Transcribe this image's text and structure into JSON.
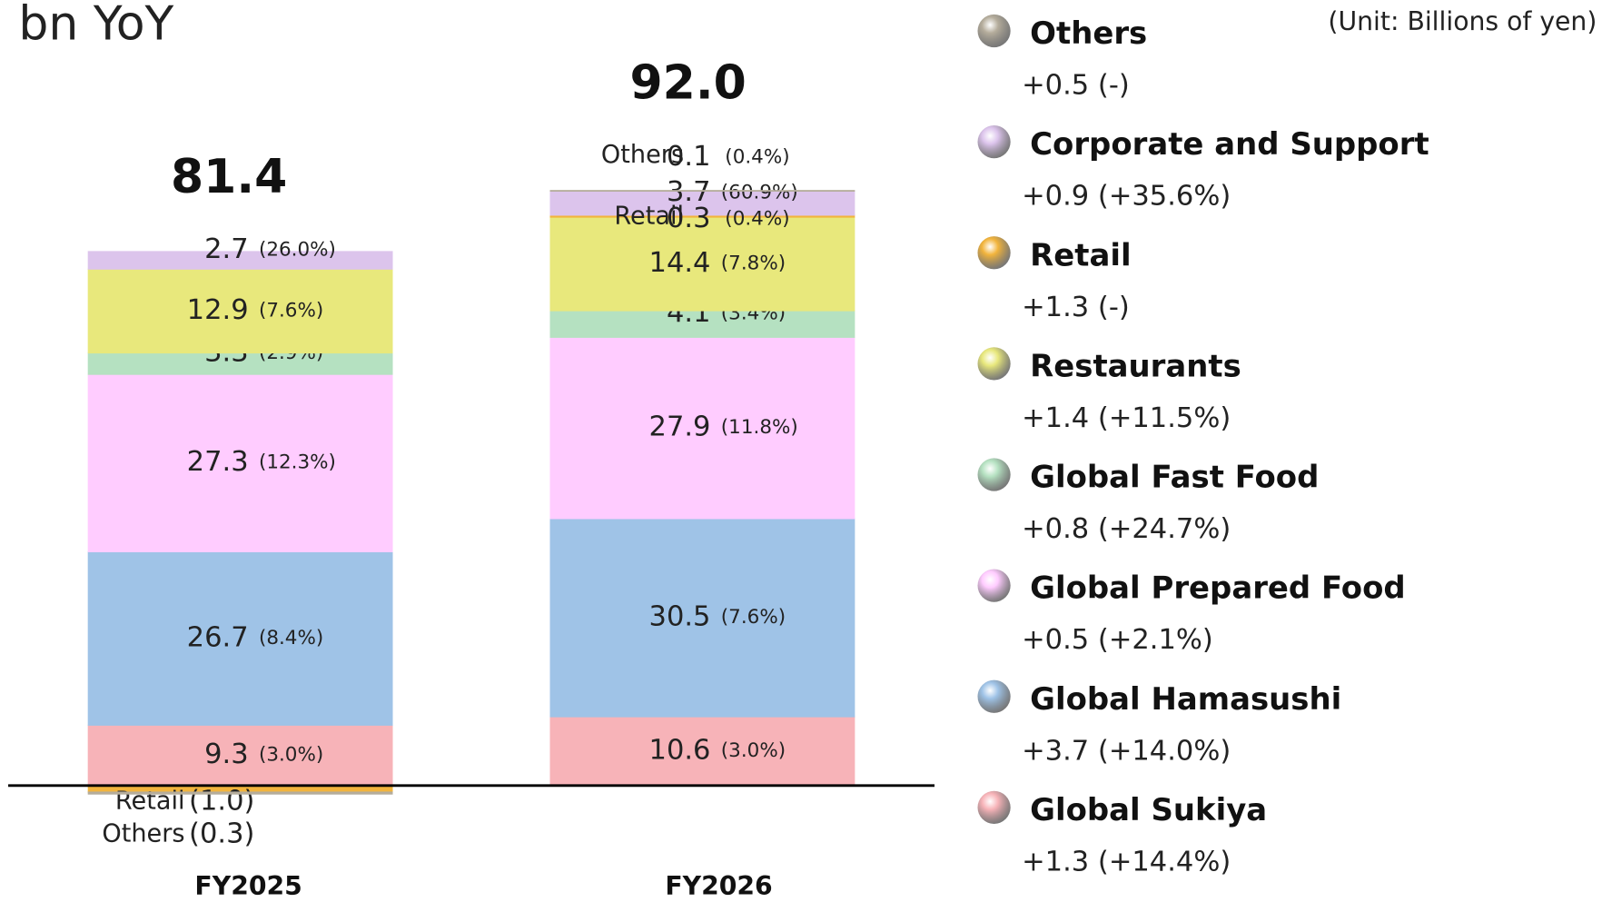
{
  "chart_data": {
    "type": "stacked_bar",
    "title": "bn YoY",
    "unit": "(Unit: Billions of yen)",
    "categories": [
      "FY2025",
      "FY2026"
    ],
    "totals": [
      "81.4",
      "92.0"
    ],
    "ylim": [
      -10,
      110
    ],
    "series": [
      {
        "name": "Global Sukiya",
        "color": "#f7b3b8",
        "values": [
          9.3,
          10.6
        ],
        "margins": [
          "(3.0%)",
          "(3.0%)"
        ],
        "yoy": "+1.3 (+14.4%)"
      },
      {
        "name": "Global Hamasushi",
        "color": "#9fc3e7",
        "values": [
          26.7,
          30.5
        ],
        "margins": [
          "(8.4%)",
          "(7.6%)"
        ],
        "yoy": "+3.7 (+14.0%)"
      },
      {
        "name": "Global Prepared Food",
        "color": "#ffccff",
        "values": [
          27.3,
          27.9
        ],
        "margins": [
          "(12.3%)",
          "(11.8%)"
        ],
        "yoy": "+0.5 (+2.1%)"
      },
      {
        "name": "Global Fast Food",
        "color": "#b5e1c1",
        "values": [
          3.3,
          4.1
        ],
        "margins": [
          "(2.9%)",
          "(3.4%)"
        ],
        "yoy": "+0.8 (+24.7%)"
      },
      {
        "name": "Restaurants",
        "color": "#e8e87c",
        "values": [
          12.9,
          14.4
        ],
        "margins": [
          "(7.6%)",
          "(7.8%)"
        ],
        "yoy": "+1.4 (+11.5%)"
      },
      {
        "name": "Retail",
        "color": "#f2b43c",
        "values": [
          -1.0,
          0.3
        ],
        "value_labels": [
          "(1.0)",
          null
        ],
        "margins": [
          null,
          "(0.4%)"
        ],
        "yoy": "+1.3 (-)"
      },
      {
        "name": "Corporate and Support",
        "color": "#dcc4ec",
        "values": [
          2.7,
          3.7
        ],
        "margins": [
          "(26.0%)",
          "(60.9%)"
        ],
        "yoy": "+0.9 (+35.6%)"
      },
      {
        "name": "Others",
        "color": "#b5ad9c",
        "values": [
          -0.3,
          0.1
        ],
        "value_labels": [
          "(0.3)",
          null
        ],
        "margins": [
          null,
          "(0.4%)"
        ],
        "yoy": "+0.5 (-)"
      }
    ]
  }
}
